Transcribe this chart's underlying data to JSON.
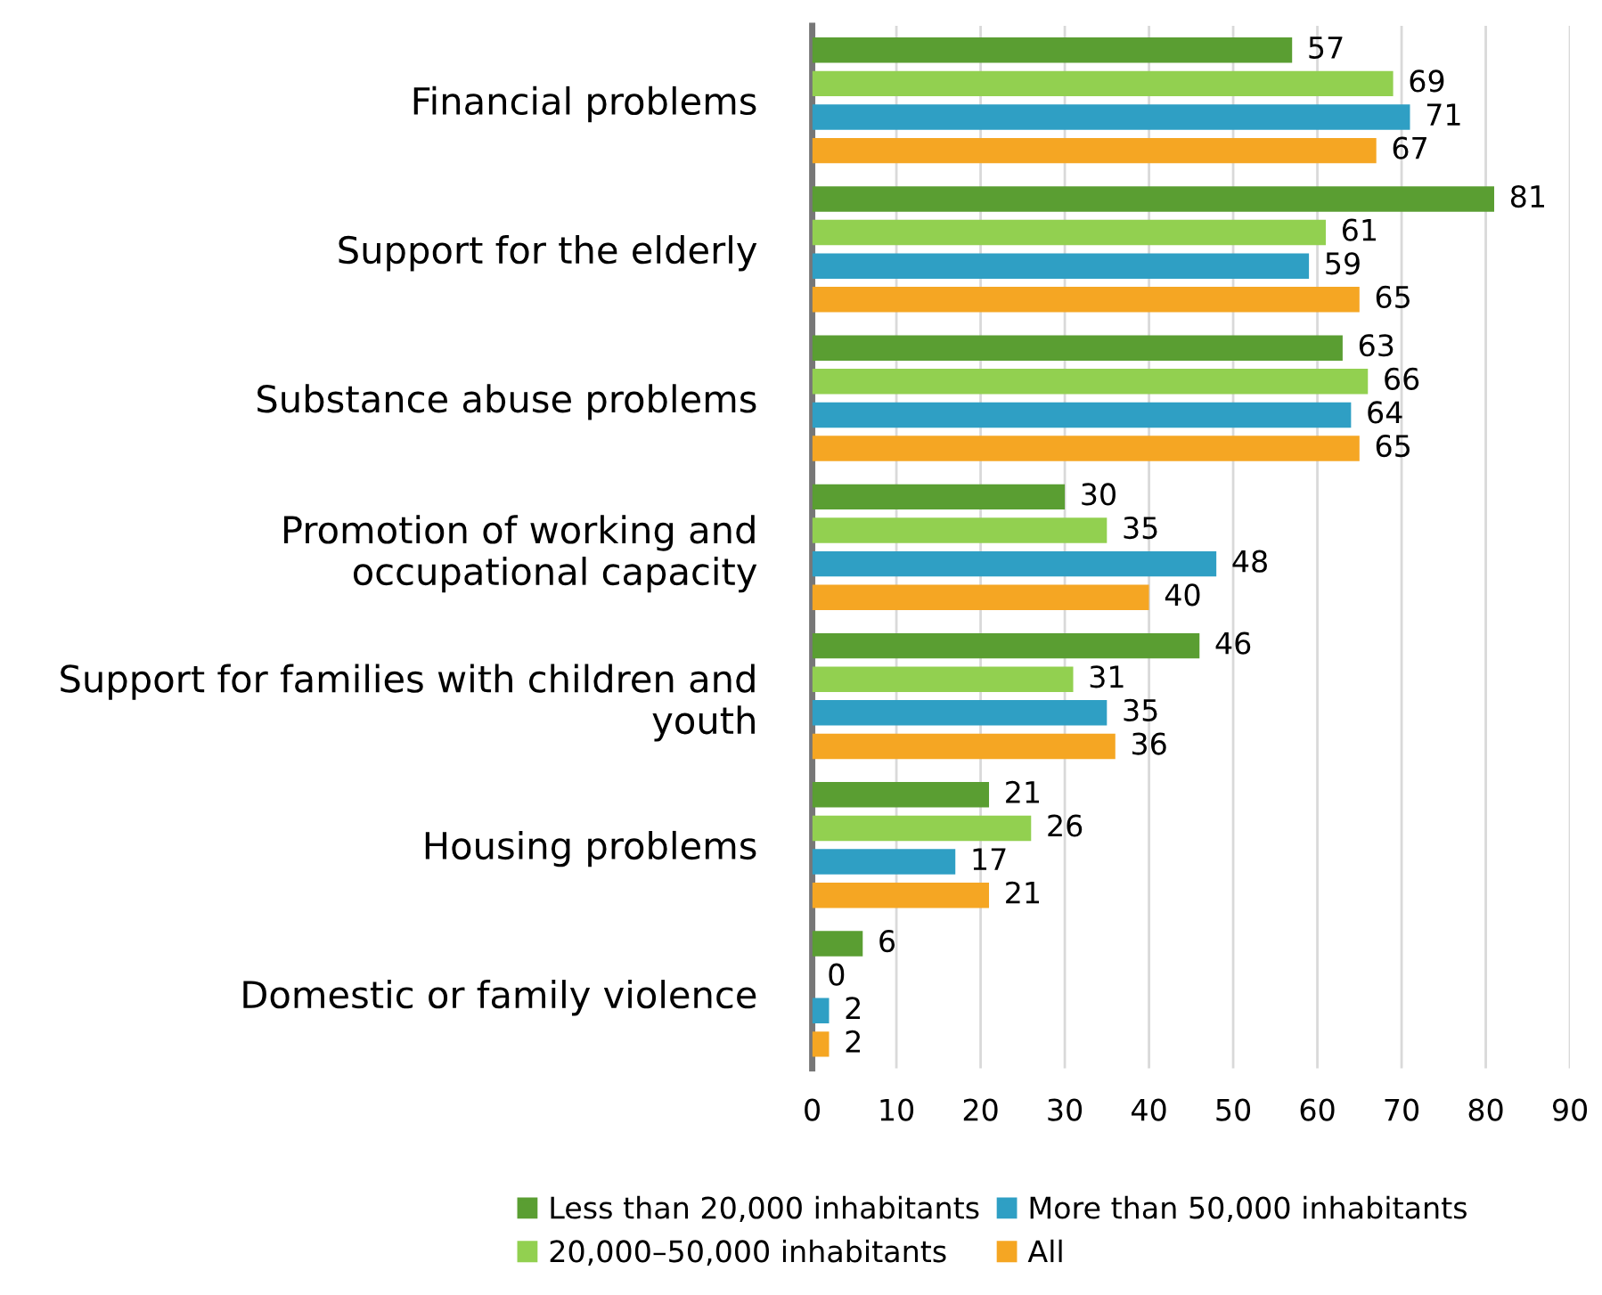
{
  "chart_data": {
    "type": "bar",
    "orientation": "horizontal",
    "categories": [
      "Financial problems",
      "Support for the elderly",
      "Substance abuse problems",
      "Promotion of working and\noccupational capacity",
      "Support for families with children and\nyouth",
      "Housing problems",
      "Domestic or family violence"
    ],
    "series": [
      {
        "name": "Less than 20,000 inhabitants",
        "color": "#5a9e32",
        "values": [
          57,
          81,
          63,
          30,
          46,
          21,
          6
        ]
      },
      {
        "name": "20,000–50,000 inhabitants",
        "color": "#92d050",
        "values": [
          69,
          61,
          66,
          35,
          31,
          26,
          0
        ]
      },
      {
        "name": "More than 50,000 inhabitants",
        "color": "#2f9fc4",
        "values": [
          71,
          59,
          64,
          48,
          35,
          17,
          2
        ]
      },
      {
        "name": "All",
        "color": "#f5a623",
        "values": [
          67,
          65,
          65,
          40,
          36,
          21,
          2
        ]
      }
    ],
    "xlim": [
      0,
      90
    ],
    "xticks": [
      0,
      10,
      20,
      30,
      40,
      50,
      60,
      70,
      80,
      90
    ],
    "grid": "x",
    "legend": "bottom",
    "data_labels": true
  }
}
